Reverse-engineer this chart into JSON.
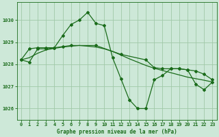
{
  "title": "Graphe pression niveau de la mer (hPa)",
  "background_color": "#cde8d8",
  "grid_color": "#a0c8a8",
  "line_color": "#1a6b1a",
  "xlim": [
    -0.5,
    23.5
  ],
  "ylim": [
    1025.5,
    1030.8
  ],
  "yticks": [
    1026,
    1027,
    1028,
    1029,
    1030
  ],
  "xticks": [
    0,
    1,
    2,
    3,
    4,
    5,
    6,
    7,
    8,
    9,
    10,
    11,
    12,
    13,
    14,
    15,
    16,
    17,
    18,
    19,
    20,
    21,
    22,
    23
  ],
  "series1_x": [
    0,
    1,
    2,
    3,
    4,
    5,
    6,
    7,
    8,
    9,
    10,
    11,
    12,
    13,
    14,
    15,
    16,
    17,
    18,
    19,
    20,
    21,
    22,
    23
  ],
  "series1_y": [
    1028.2,
    1028.1,
    1028.7,
    1028.7,
    1028.75,
    1029.3,
    1029.8,
    1030.0,
    1030.35,
    1029.85,
    1029.75,
    1028.3,
    1027.35,
    1026.4,
    1026.0,
    1026.0,
    1027.3,
    1027.5,
    1027.8,
    1027.8,
    1027.75,
    1027.1,
    1026.85,
    1027.2
  ],
  "series2_x": [
    0,
    1,
    2,
    3,
    4,
    5,
    6,
    9,
    12,
    15,
    16,
    17,
    18,
    19,
    20,
    21,
    22,
    23
  ],
  "series2_y": [
    1028.2,
    1028.7,
    1028.75,
    1028.75,
    1028.75,
    1028.8,
    1028.85,
    1028.85,
    1028.45,
    1028.2,
    1027.85,
    1027.8,
    1027.8,
    1027.8,
    1027.75,
    1027.7,
    1027.55,
    1027.3
  ],
  "series3_x": [
    0,
    1,
    2,
    3,
    4,
    5,
    6,
    7,
    8,
    9,
    10,
    11,
    12,
    13,
    14,
    15,
    16,
    17,
    18,
    19,
    20,
    21,
    22,
    23
  ],
  "series3_y": [
    1028.2,
    1028.3,
    1028.5,
    1028.65,
    1028.72,
    1028.78,
    1028.82,
    1028.85,
    1028.82,
    1028.78,
    1028.7,
    1028.58,
    1028.42,
    1028.25,
    1028.1,
    1027.95,
    1027.82,
    1027.72,
    1027.62,
    1027.52,
    1027.42,
    1027.35,
    1027.28,
    1027.2
  ]
}
